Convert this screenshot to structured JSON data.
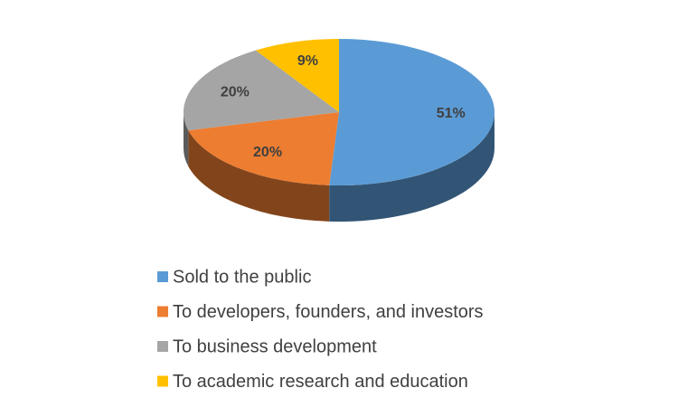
{
  "chart_data": {
    "type": "pie3d",
    "categories": [
      "Sold to the public",
      "To developers, founders, and investors",
      "To business development",
      "To academic research and education"
    ],
    "values": [
      51,
      20,
      20,
      9
    ],
    "value_labels": [
      "51%",
      "20%",
      "20%",
      "9%"
    ],
    "colors": [
      "#5b9bd5",
      "#ed7d31",
      "#a5a5a5",
      "#ffc000"
    ],
    "legend": "bottom"
  }
}
